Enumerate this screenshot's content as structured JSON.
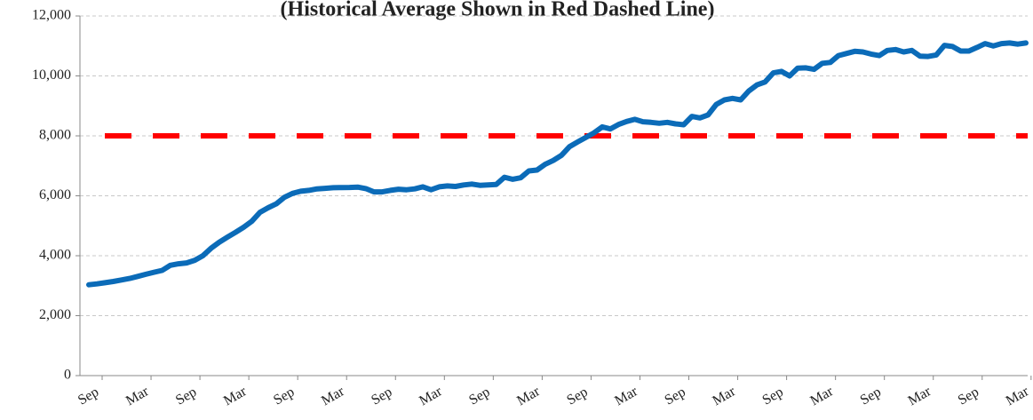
{
  "chart_data": {
    "type": "line",
    "title": "(Historical Average Shown in Red Dashed Line)",
    "categories": [
      "Sep",
      null,
      null,
      null,
      null,
      null,
      "Mar",
      null,
      null,
      null,
      null,
      null,
      "Sep",
      null,
      null,
      null,
      null,
      null,
      "Mar",
      null,
      null,
      null,
      null,
      null,
      "Sep",
      null,
      null,
      null,
      null,
      null,
      "Mar",
      null,
      null,
      null,
      null,
      null,
      "Sep",
      null,
      null,
      null,
      null,
      null,
      "Mar",
      null,
      null,
      null,
      null,
      null,
      "Sep",
      null,
      null,
      null,
      null,
      null,
      "Mar",
      null,
      null,
      null,
      null,
      null,
      "Sep",
      null,
      null,
      null,
      null,
      null,
      "Mar",
      null,
      null,
      null,
      null,
      null,
      "Sep",
      null,
      null,
      null,
      null,
      null,
      "Mar",
      null,
      null,
      null,
      null,
      null,
      "Sep",
      null,
      null,
      null,
      null,
      null,
      "Mar",
      null,
      null,
      null,
      null,
      null,
      "Sep",
      null,
      null,
      null,
      null,
      null,
      "Mar",
      null,
      null,
      null,
      null,
      null,
      "Sep",
      null,
      null,
      null,
      null,
      null,
      "Mar",
      null
    ],
    "values": [
      3030,
      3060,
      3100,
      3140,
      3190,
      3240,
      3310,
      3380,
      3450,
      3510,
      3680,
      3730,
      3760,
      3850,
      4000,
      4250,
      4450,
      4620,
      4780,
      4950,
      5150,
      5450,
      5600,
      5730,
      5950,
      6080,
      6150,
      6180,
      6230,
      6250,
      6270,
      6275,
      6280,
      6290,
      6240,
      6130,
      6130,
      6180,
      6220,
      6200,
      6230,
      6300,
      6200,
      6300,
      6330,
      6310,
      6360,
      6390,
      6350,
      6360,
      6380,
      6620,
      6550,
      6600,
      6830,
      6860,
      7050,
      7180,
      7350,
      7640,
      7800,
      7950,
      8100,
      8300,
      8230,
      8380,
      8480,
      8550,
      8470,
      8450,
      8420,
      8450,
      8400,
      8370,
      8650,
      8600,
      8700,
      9050,
      9200,
      9250,
      9200,
      9500,
      9700,
      9800,
      10100,
      10150,
      10000,
      10260,
      10270,
      10220,
      10420,
      10450,
      10680,
      10750,
      10820,
      10800,
      10730,
      10680,
      10850,
      10880,
      10800,
      10850,
      10660,
      10650,
      10700,
      11020,
      10980,
      10830,
      10830,
      10950,
      11080,
      11000,
      11080,
      11100,
      11060,
      11100
    ],
    "color": "#0b6bb8",
    "reference_line": {
      "value": 8000,
      "color": "#ff0000"
    },
    "ylim": [
      0,
      12000
    ],
    "yticks": [
      0,
      {
        "value": 2000,
        "label": "2,000"
      },
      {
        "value": 4000,
        "label": "4,000"
      },
      {
        "value": 6000,
        "label": "6,000"
      },
      {
        "value": 8000,
        "label": "8,000"
      },
      {
        "value": 10000,
        "label": "10,000"
      },
      {
        "value": 12000,
        "label": "12,000"
      }
    ],
    "grid": true
  }
}
